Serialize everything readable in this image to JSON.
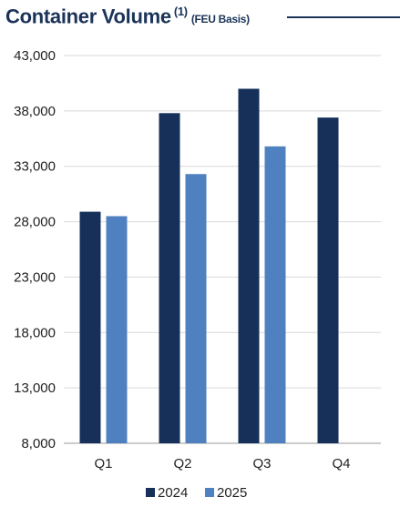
{
  "header": {
    "title": "Container Volume",
    "footnote_marker": "(1)",
    "subtitle": "(FEU Basis)"
  },
  "colors": {
    "series_2024": "#16305a",
    "series_2025": "#4f81c0",
    "title": "#1b3358",
    "grid": "#d9d9d9"
  },
  "chart_data": {
    "type": "bar",
    "title": "Container Volume (1) (FEU Basis)",
    "categories": [
      "Q1",
      "Q2",
      "Q3",
      "Q4"
    ],
    "series": [
      {
        "name": "2024",
        "values": [
          28900,
          37800,
          40000,
          37400
        ]
      },
      {
        "name": "2025",
        "values": [
          28500,
          32300,
          34800,
          null
        ]
      }
    ],
    "yticks": [
      "8,000",
      "13,000",
      "18,000",
      "23,000",
      "28,000",
      "33,000",
      "38,000",
      "43,000"
    ],
    "ylim": [
      8000,
      43000
    ],
    "xlabel": "",
    "ylabel": "",
    "grid": true,
    "legend": "bottom-center"
  }
}
